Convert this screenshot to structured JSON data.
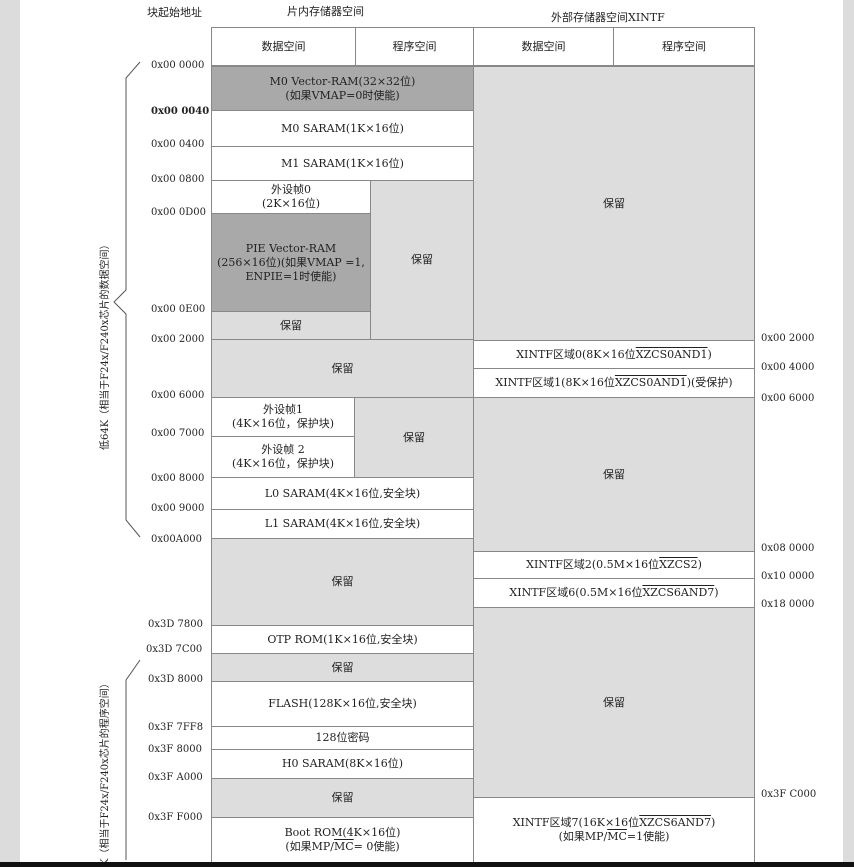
{
  "headers": {
    "block_start_addr": "块起始地址",
    "onchip_space": "片内存储器空间",
    "external_space": "外部存储器空间XINTF",
    "data_space_1": "数据空间",
    "program_space_1": "程序空间",
    "data_space_2": "数据空间",
    "program_space_2": "程序空间"
  },
  "side_labels": {
    "low64k": "低64K（相当于F24x/F240x芯片的数据空间）",
    "high64k": "K（相当于F24x/F240x芯片的程序空间）"
  },
  "left_addresses": {
    "a0000": "0x00 0000",
    "a0040": "0x00 0040",
    "a0400": "0x00 0400",
    "a0800": "0x00 0800",
    "a0D00": "0x00 0D00",
    "a0E00": "0x00 0E00",
    "a2000": "0x00 2000",
    "a6000": "0x00 6000",
    "a7000": "0x00 7000",
    "a8000": "0x00 8000",
    "a9000": "0x00 9000",
    "aA000": "0x00A000",
    "a3D7800": "0x3D 7800",
    "a3D7C00": "0x3D 7C00",
    "a3D8000": "0x3D 8000",
    "a3F7FF8": "0x3F 7FF8",
    "a3F8000": "0x3F 8000",
    "a3FA000": "0x3F A000",
    "a3FF000": "0x3F F000"
  },
  "right_addresses": {
    "r2000": "0x00 2000",
    "r4000": "0x00 4000",
    "r6000": "0x00 6000",
    "r80000": "0x08 0000",
    "r100000": "0x10 0000",
    "r180000": "0x18 0000",
    "r3FC000": "0x3F C000"
  },
  "cells": {
    "m0vec_l1": "M0 Vector-RAM(32×32位)",
    "m0vec_l2": "(如果VMAP=0时使能)",
    "m0saram": "M0 SARAM(1K×16位)",
    "m1saram": "M1 SARAM(1K×16位)",
    "pf0_l1": "外设帧0",
    "pf0_l2": "(2K×16位)",
    "pievec_l1": "PIE Vector-RAM",
    "pievec_l2": "(256×16位)(如果VMAP =1,",
    "pievec_l3": "ENPIE=1时使能)",
    "reserved_0e00": "保留",
    "reserved_prog_top": "保留",
    "reserved_2000": "保留",
    "pf1_l1": "外设帧1",
    "pf1_l2": "(4K×16位，保护块)",
    "pf2_l1": "外设帧 2",
    "pf2_l2": "(4K×16位，保护块)",
    "reserved_prog_mid": "保留",
    "l0saram": "L0 SARAM(4K×16位,安全块)",
    "l1saram": "L1 SARAM(4K×16位,安全块)",
    "reserved_a000": "保留",
    "otprom": "OTP ROM(1K×16位,安全块)",
    "reserved_7c00": "保留",
    "flash": "FLASH(128K×16位,安全块)",
    "password": "128位密码",
    "h0saram": "H0 SARAM(8K×16位)",
    "reserved_a000_hi": "保留",
    "bootrom_l1": "Boot ROM(4K×16位)",
    "bootrom_l2_pre": "(如果MP/",
    "bootrom_l2_mc": "MC",
    "bootrom_l2_post": "= 0使能)",
    "ext_reserved_1": "保留",
    "xintf0_pre": "XINTF区域0(8K×16位",
    "xintf0_sig": "XZCS0AND1",
    "xintf0_post": ")",
    "xintf1_pre": "XINTF区域1(8K×16位",
    "xintf1_sig": "XZCS0AND1",
    "xintf1_post": ")(受保护)",
    "ext_reserved_2": "保留",
    "xintf2_pre": "XINTF区域2(0.5M×16位",
    "xintf2_sig": "XZCS2",
    "xintf2_post": ")",
    "xintf6_pre": "XINTF区域6(0.5M×16位",
    "xintf6_sig": "XZCS6AND7",
    "xintf6_post": ")",
    "ext_reserved_3": "保留",
    "xintf7_pre": "XINTF区域7(16K×16位",
    "xintf7_sig": "XZCS6AND7",
    "xintf7_post": ")",
    "xintf7_l2_pre": "(如果MP/",
    "xintf7_l2_mc": "MC",
    "xintf7_l2_post": "=1使能)"
  }
}
